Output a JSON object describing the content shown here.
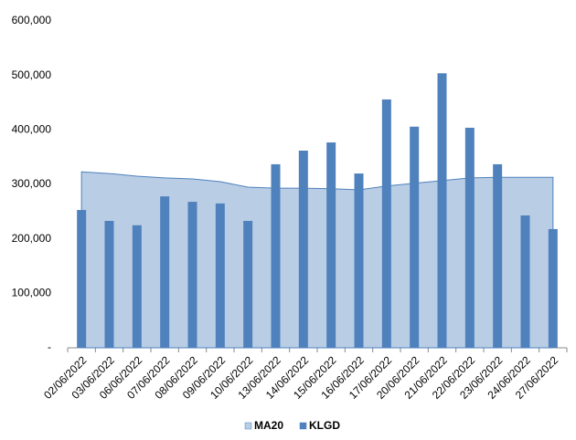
{
  "chart_data": {
    "type": "bar",
    "categories": [
      "02/06/2022",
      "03/06/2022",
      "06/06/2022",
      "07/06/2022",
      "08/06/2022",
      "09/06/2022",
      "10/06/2022",
      "13/06/2022",
      "14/06/2022",
      "15/06/2022",
      "16/06/2022",
      "17/06/2022",
      "20/06/2022",
      "21/06/2022",
      "22/06/2022",
      "23/06/2022",
      "24/06/2022",
      "27/06/2022"
    ],
    "series": [
      {
        "name": "MA20",
        "type": "area",
        "color": "#b9cde5",
        "values": [
          323000,
          320000,
          315000,
          312000,
          310000,
          305000,
          295000,
          293000,
          293000,
          292000,
          290000,
          297000,
          302000,
          307000,
          312000,
          313000,
          313000,
          313000
        ]
      },
      {
        "name": "KLGD",
        "type": "bar",
        "color": "#4f81bd",
        "values": [
          253000,
          233000,
          225000,
          278000,
          268000,
          265000,
          233000,
          337000,
          362000,
          377000,
          320000,
          456000,
          406000,
          504000,
          404000,
          337000,
          243000,
          218000
        ]
      }
    ],
    "ylim": [
      0,
      600000
    ],
    "yticks": [
      {
        "value": 0,
        "label": "-"
      },
      {
        "value": 100000,
        "label": "100,000"
      },
      {
        "value": 200000,
        "label": "200,000"
      },
      {
        "value": 300000,
        "label": "300,000"
      },
      {
        "value": 400000,
        "label": "400,000"
      },
      {
        "value": 500000,
        "label": "500,000"
      },
      {
        "value": 600000,
        "label": "600,000"
      }
    ],
    "grid": false,
    "legend": "bottom"
  }
}
